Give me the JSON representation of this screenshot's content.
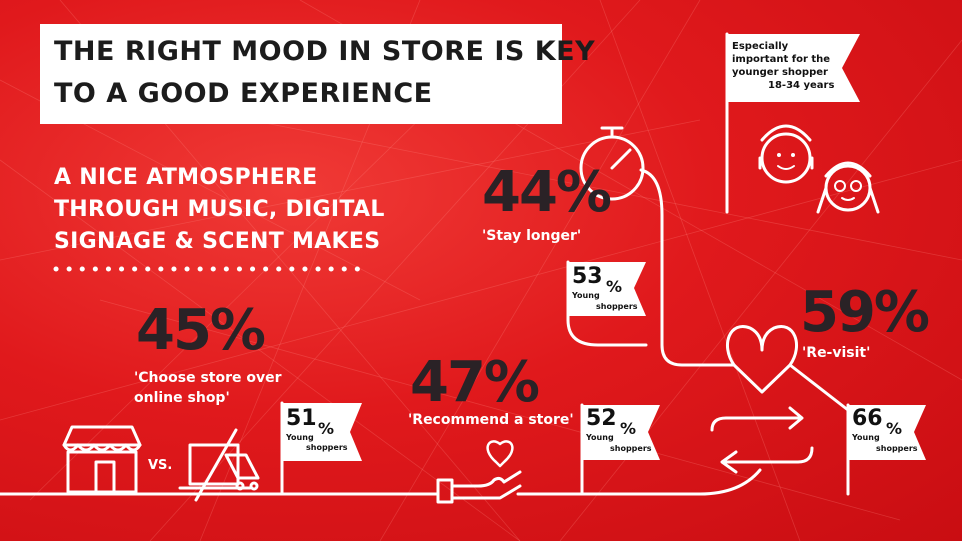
{
  "title": {
    "line1": "THE RIGHT MOOD IN STORE IS KEY",
    "line2": "TO A GOOD EXPERIENCE"
  },
  "subtitle": {
    "line1": "A NICE ATMOSPHERE",
    "line2": "THROUGH MUSIC, DIGITAL",
    "line3": "SIGNAGE & SCENT MAKES"
  },
  "note": {
    "line1": "Especially",
    "line2": "important for the",
    "line3": "younger shopper",
    "line4": "18-34 years"
  },
  "vs_label": "VS.",
  "stats": {
    "choose": {
      "value": "45%",
      "caption_line1": "'Choose store over",
      "caption_line2": "online shop'",
      "young_value": "51",
      "young_pct": "%",
      "young_label1": "Young",
      "young_label2": "shoppers"
    },
    "recommend": {
      "value": "47%",
      "caption": "'Recommend a store'",
      "young_value": "52",
      "young_pct": "%",
      "young_label1": "Young",
      "young_label2": "shoppers"
    },
    "stay": {
      "value": "44%",
      "caption": "'Stay longer'",
      "young_value": "53",
      "young_pct": "%",
      "young_label1": "Young",
      "young_label2": "shoppers"
    },
    "revisit": {
      "value": "59%",
      "caption": "'Re-visit'",
      "young_value": "66",
      "young_pct": "%",
      "young_label1": "Young",
      "young_label2": "shoppers"
    }
  },
  "colors": {
    "background": "#e0191c",
    "dark": "#2a2226",
    "white": "#ffffff"
  }
}
